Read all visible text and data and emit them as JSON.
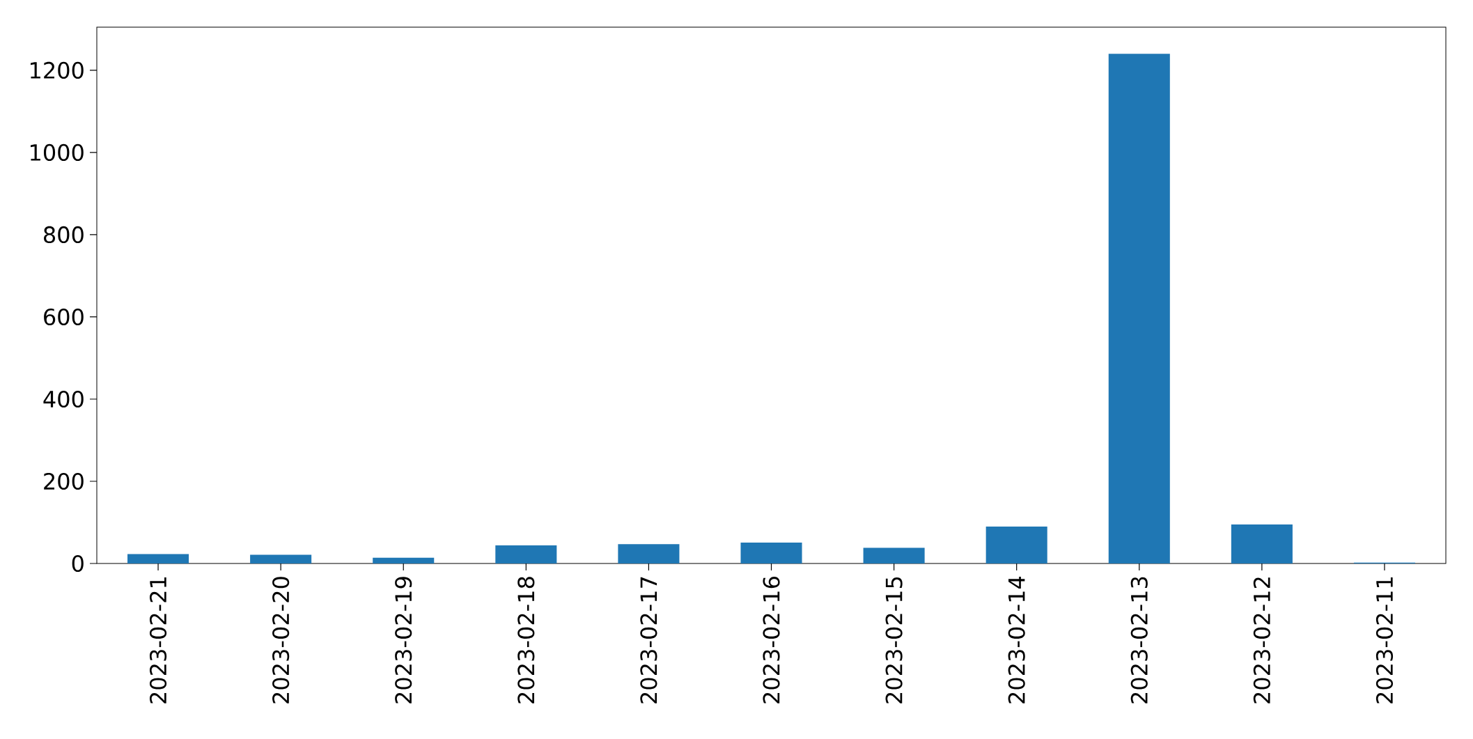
{
  "chart_data": {
    "type": "bar",
    "categories": [
      "2023-02-21",
      "2023-02-20",
      "2023-02-19",
      "2023-02-18",
      "2023-02-17",
      "2023-02-16",
      "2023-02-15",
      "2023-02-14",
      "2023-02-13",
      "2023-02-12",
      "2023-02-11"
    ],
    "values": [
      23,
      21,
      14,
      44,
      47,
      51,
      38,
      90,
      1240,
      95,
      2
    ],
    "color": "#1f77b4",
    "ylim": [
      0,
      1305
    ],
    "yticks": [
      0,
      200,
      400,
      600,
      800,
      1000,
      1200
    ]
  }
}
